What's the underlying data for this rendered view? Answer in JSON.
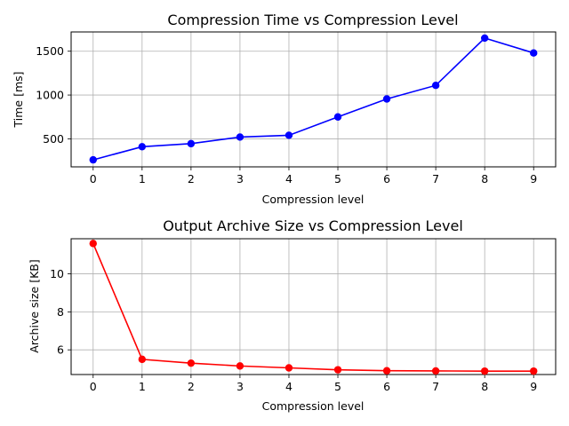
{
  "chart_data": [
    {
      "type": "line",
      "title": "Compression Time vs Compression Level",
      "xlabel": "Compression level",
      "ylabel": "Time [ms]",
      "x": [
        0,
        1,
        2,
        3,
        4,
        5,
        6,
        7,
        8,
        9
      ],
      "xlim": [
        -0.45,
        9.45
      ],
      "ylim": [
        180,
        1720
      ],
      "yticks": [
        500,
        1000,
        1500
      ],
      "grid": true,
      "color": "#0000ff",
      "series": [
        {
          "values": [
            260,
            410,
            445,
            520,
            540,
            750,
            955,
            1110,
            1650,
            1480
          ]
        }
      ]
    },
    {
      "type": "line",
      "title": "Output Archive Size vs Compression Level",
      "xlabel": "Compression level",
      "ylabel": "Archive size [KB]",
      "x": [
        0,
        1,
        2,
        3,
        4,
        5,
        6,
        7,
        8,
        9
      ],
      "xlim": [
        -0.45,
        9.45
      ],
      "ylim": [
        4.7,
        11.85
      ],
      "yticks": [
        6,
        8,
        10
      ],
      "grid": true,
      "color": "#ff0000",
      "series": [
        {
          "values": [
            11.6,
            5.5,
            5.3,
            5.15,
            5.05,
            4.95,
            4.9,
            4.89,
            4.88,
            4.88
          ]
        }
      ]
    }
  ]
}
